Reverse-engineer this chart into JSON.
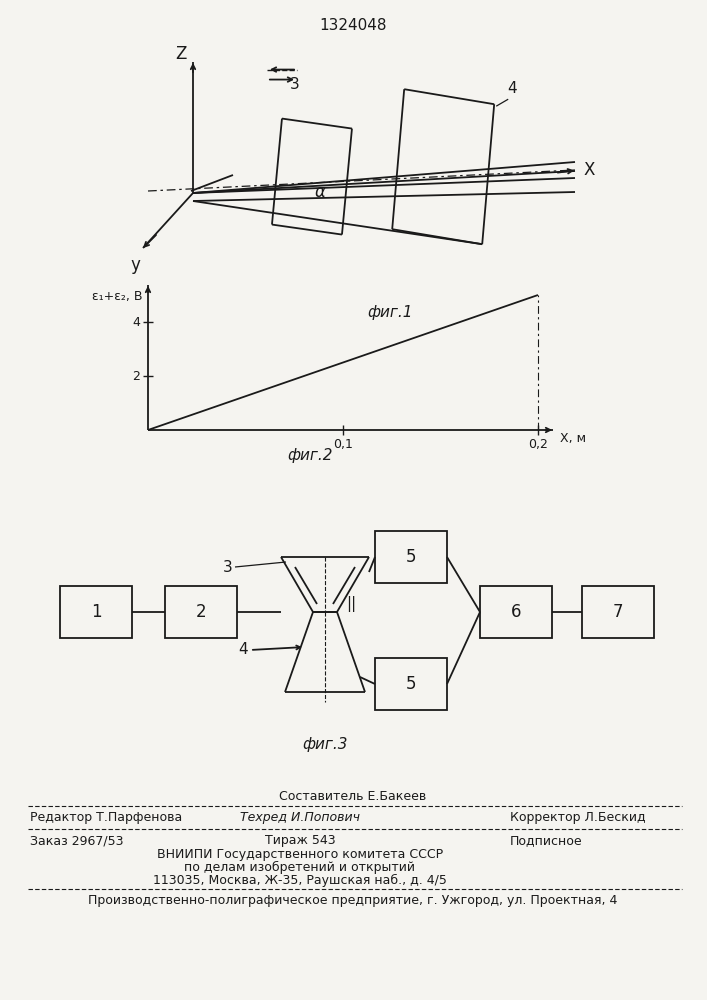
{
  "title": "1324048",
  "bg_color": "#f5f4f0",
  "fig1_label": "фиг.1",
  "fig2_label": "фиг.2",
  "fig3_label": "фиг.3"
}
